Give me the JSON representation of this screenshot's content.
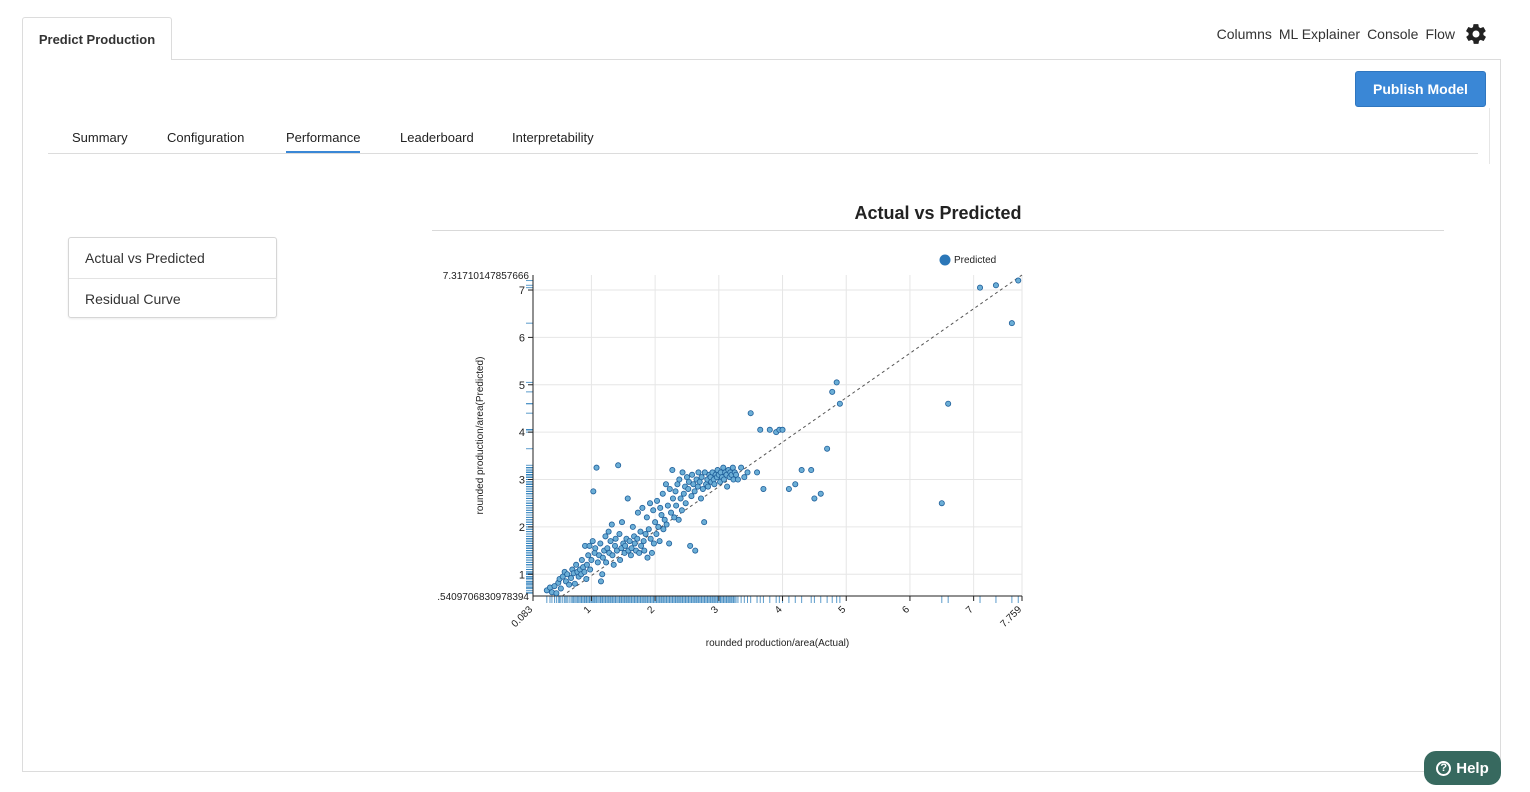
{
  "app": {
    "tab_title": "Predict Production"
  },
  "top_nav": {
    "items": [
      "Columns",
      "ML Explainer",
      "Console",
      "Flow"
    ],
    "settings_icon": "gear-icon"
  },
  "actions": {
    "publish_label": "Publish Model"
  },
  "subtabs": [
    "Summary",
    "Configuration",
    "Performance",
    "Leaderboard",
    "Interpretability"
  ],
  "active_subtab": "Performance",
  "side_menu": [
    "Actual vs Predicted",
    "Residual Curve"
  ],
  "help": {
    "label": "Help",
    "icon": "?"
  },
  "colors": {
    "accent": "#3a87d6",
    "point_fill": "#6baed6",
    "point_stroke": "#1f5f9a",
    "help_bg": "#37695f"
  },
  "chart_data": {
    "type": "scatter",
    "title": "Actual vs Predicted",
    "xlabel": "rounded production/area(Actual)",
    "ylabel": "rounded production/area(Predicted)",
    "legend": {
      "entries": [
        "Predicted"
      ],
      "placement": "top-right"
    },
    "xlim": [
      0.083,
      7.759
    ],
    "ylim": [
      0.5409706830978394,
      7.31710147857666
    ],
    "x_ticks": [
      1,
      2,
      3,
      4,
      5,
      6,
      7
    ],
    "y_ticks": [
      1,
      2,
      3,
      4,
      5,
      6,
      7
    ],
    "x_min_label": "0.083",
    "x_max_label": "7.759",
    "y_min_label": ".5409706830978394",
    "y_max_label": "7.31710147857666",
    "grid": true,
    "diagonal_reference": true,
    "rug": true,
    "points": [
      [
        0.3,
        0.66
      ],
      [
        0.35,
        0.72
      ],
      [
        0.38,
        0.62
      ],
      [
        0.42,
        0.75
      ],
      [
        0.45,
        0.6
      ],
      [
        0.48,
        0.82
      ],
      [
        0.5,
        0.9
      ],
      [
        0.52,
        0.7
      ],
      [
        0.55,
        0.95
      ],
      [
        0.58,
        1.05
      ],
      [
        0.6,
        0.85
      ],
      [
        0.62,
        1.0
      ],
      [
        0.65,
        0.78
      ],
      [
        0.68,
        0.92
      ],
      [
        0.7,
        1.1
      ],
      [
        0.72,
        1.02
      ],
      [
        0.74,
        0.8
      ],
      [
        0.76,
        1.2
      ],
      [
        0.78,
        1.05
      ],
      [
        0.8,
        0.95
      ],
      [
        0.82,
        1.1
      ],
      [
        0.84,
        1.0
      ],
      [
        0.85,
        1.3
      ],
      [
        0.87,
        1.15
      ],
      [
        0.89,
        1.05
      ],
      [
        0.9,
        1.6
      ],
      [
        0.92,
        0.9
      ],
      [
        0.93,
        1.2
      ],
      [
        0.95,
        1.4
      ],
      [
        0.97,
        1.6
      ],
      [
        0.98,
        1.1
      ],
      [
        1.0,
        1.3
      ],
      [
        1.02,
        1.7
      ],
      [
        1.03,
        2.75
      ],
      [
        1.05,
        1.45
      ],
      [
        1.06,
        1.55
      ],
      [
        1.08,
        3.25
      ],
      [
        1.1,
        1.25
      ],
      [
        1.12,
        1.4
      ],
      [
        1.14,
        1.65
      ],
      [
        1.15,
        0.85
      ],
      [
        1.17,
        1.0
      ],
      [
        1.18,
        1.35
      ],
      [
        1.2,
        1.5
      ],
      [
        1.22,
        1.8
      ],
      [
        1.23,
        1.25
      ],
      [
        1.25,
        1.55
      ],
      [
        1.27,
        1.9
      ],
      [
        1.28,
        1.45
      ],
      [
        1.3,
        1.7
      ],
      [
        1.32,
        2.05
      ],
      [
        1.33,
        1.4
      ],
      [
        1.35,
        1.2
      ],
      [
        1.37,
        1.6
      ],
      [
        1.38,
        1.75
      ],
      [
        1.4,
        1.5
      ],
      [
        1.42,
        3.3
      ],
      [
        1.44,
        1.85
      ],
      [
        1.45,
        1.3
      ],
      [
        1.47,
        1.55
      ],
      [
        1.48,
        2.1
      ],
      [
        1.5,
        1.65
      ],
      [
        1.52,
        1.45
      ],
      [
        1.53,
        1.6
      ],
      [
        1.55,
        1.75
      ],
      [
        1.57,
        2.6
      ],
      [
        1.58,
        1.5
      ],
      [
        1.6,
        1.7
      ],
      [
        1.62,
        1.4
      ],
      [
        1.63,
        1.55
      ],
      [
        1.65,
        2.0
      ],
      [
        1.67,
        1.8
      ],
      [
        1.68,
        1.65
      ],
      [
        1.7,
        1.5
      ],
      [
        1.72,
        1.75
      ],
      [
        1.73,
        2.3
      ],
      [
        1.75,
        1.45
      ],
      [
        1.77,
        1.9
      ],
      [
        1.78,
        1.6
      ],
      [
        1.8,
        2.4
      ],
      [
        1.82,
        1.7
      ],
      [
        1.83,
        1.5
      ],
      [
        1.85,
        1.85
      ],
      [
        1.87,
        2.2
      ],
      [
        1.88,
        1.35
      ],
      [
        1.9,
        1.95
      ],
      [
        1.92,
        2.5
      ],
      [
        1.93,
        1.75
      ],
      [
        1.95,
        1.45
      ],
      [
        1.97,
        2.35
      ],
      [
        1.98,
        1.65
      ],
      [
        2.0,
        2.1
      ],
      [
        2.02,
        1.85
      ],
      [
        2.03,
        2.55
      ],
      [
        2.05,
        2.0
      ],
      [
        2.07,
        1.7
      ],
      [
        2.08,
        2.4
      ],
      [
        2.1,
        2.25
      ],
      [
        2.12,
        2.7
      ],
      [
        2.13,
        1.95
      ],
      [
        2.15,
        2.15
      ],
      [
        2.17,
        2.9
      ],
      [
        2.18,
        2.05
      ],
      [
        2.2,
        2.45
      ],
      [
        2.22,
        1.65
      ],
      [
        2.23,
        2.8
      ],
      [
        2.25,
        2.3
      ],
      [
        2.27,
        3.2
      ],
      [
        2.28,
        2.6
      ],
      [
        2.3,
        2.2
      ],
      [
        2.32,
        2.75
      ],
      [
        2.33,
        2.45
      ],
      [
        2.35,
        2.9
      ],
      [
        2.37,
        2.15
      ],
      [
        2.38,
        3.0
      ],
      [
        2.4,
        2.6
      ],
      [
        2.42,
        2.35
      ],
      [
        2.43,
        3.15
      ],
      [
        2.45,
        2.7
      ],
      [
        2.47,
        2.85
      ],
      [
        2.48,
        2.5
      ],
      [
        2.5,
        3.05
      ],
      [
        2.52,
        2.8
      ],
      [
        2.53,
        2.95
      ],
      [
        2.55,
        1.6
      ],
      [
        2.57,
        2.65
      ],
      [
        2.58,
        3.1
      ],
      [
        2.6,
        2.9
      ],
      [
        2.62,
        2.75
      ],
      [
        2.63,
        1.5
      ],
      [
        2.65,
        3.0
      ],
      [
        2.67,
        2.85
      ],
      [
        2.68,
        3.15
      ],
      [
        2.7,
        2.95
      ],
      [
        2.72,
        2.6
      ],
      [
        2.73,
        3.05
      ],
      [
        2.75,
        2.8
      ],
      [
        2.77,
        2.1
      ],
      [
        2.78,
        3.15
      ],
      [
        2.8,
        2.9
      ],
      [
        2.82,
        3.0
      ],
      [
        2.83,
        2.85
      ],
      [
        2.85,
        3.1
      ],
      [
        2.87,
        3.05
      ],
      [
        2.88,
        2.95
      ],
      [
        2.9,
        3.15
      ],
      [
        2.92,
        3.0
      ],
      [
        2.93,
        2.9
      ],
      [
        2.95,
        3.1
      ],
      [
        2.97,
        3.05
      ],
      [
        2.98,
        3.2
      ],
      [
        3.0,
        3.1
      ],
      [
        3.02,
        2.95
      ],
      [
        3.03,
        3.15
      ],
      [
        3.05,
        3.05
      ],
      [
        3.07,
        3.25
      ],
      [
        3.08,
        3.0
      ],
      [
        3.1,
        3.15
      ],
      [
        3.12,
        3.1
      ],
      [
        3.13,
        2.85
      ],
      [
        3.15,
        3.2
      ],
      [
        3.17,
        3.05
      ],
      [
        3.18,
        3.15
      ],
      [
        3.2,
        3.1
      ],
      [
        3.22,
        3.25
      ],
      [
        3.23,
        3.0
      ],
      [
        3.25,
        3.15
      ],
      [
        3.27,
        3.1
      ],
      [
        3.3,
        3.0
      ],
      [
        3.35,
        3.25
      ],
      [
        3.4,
        3.05
      ],
      [
        3.45,
        3.15
      ],
      [
        3.5,
        4.4
      ],
      [
        3.6,
        3.15
      ],
      [
        3.65,
        4.05
      ],
      [
        3.7,
        2.8
      ],
      [
        3.8,
        4.05
      ],
      [
        3.9,
        4.0
      ],
      [
        3.95,
        4.05
      ],
      [
        4.0,
        4.05
      ],
      [
        4.1,
        2.8
      ],
      [
        4.2,
        2.9
      ],
      [
        4.3,
        3.2
      ],
      [
        4.45,
        3.2
      ],
      [
        4.5,
        2.6
      ],
      [
        4.6,
        2.7
      ],
      [
        4.7,
        3.65
      ],
      [
        4.78,
        4.85
      ],
      [
        4.85,
        5.05
      ],
      [
        4.9,
        4.6
      ],
      [
        6.5,
        2.5
      ],
      [
        6.6,
        4.6
      ],
      [
        7.1,
        7.05
      ],
      [
        7.35,
        7.1
      ],
      [
        7.6,
        6.3
      ],
      [
        7.7,
        7.2
      ]
    ]
  }
}
